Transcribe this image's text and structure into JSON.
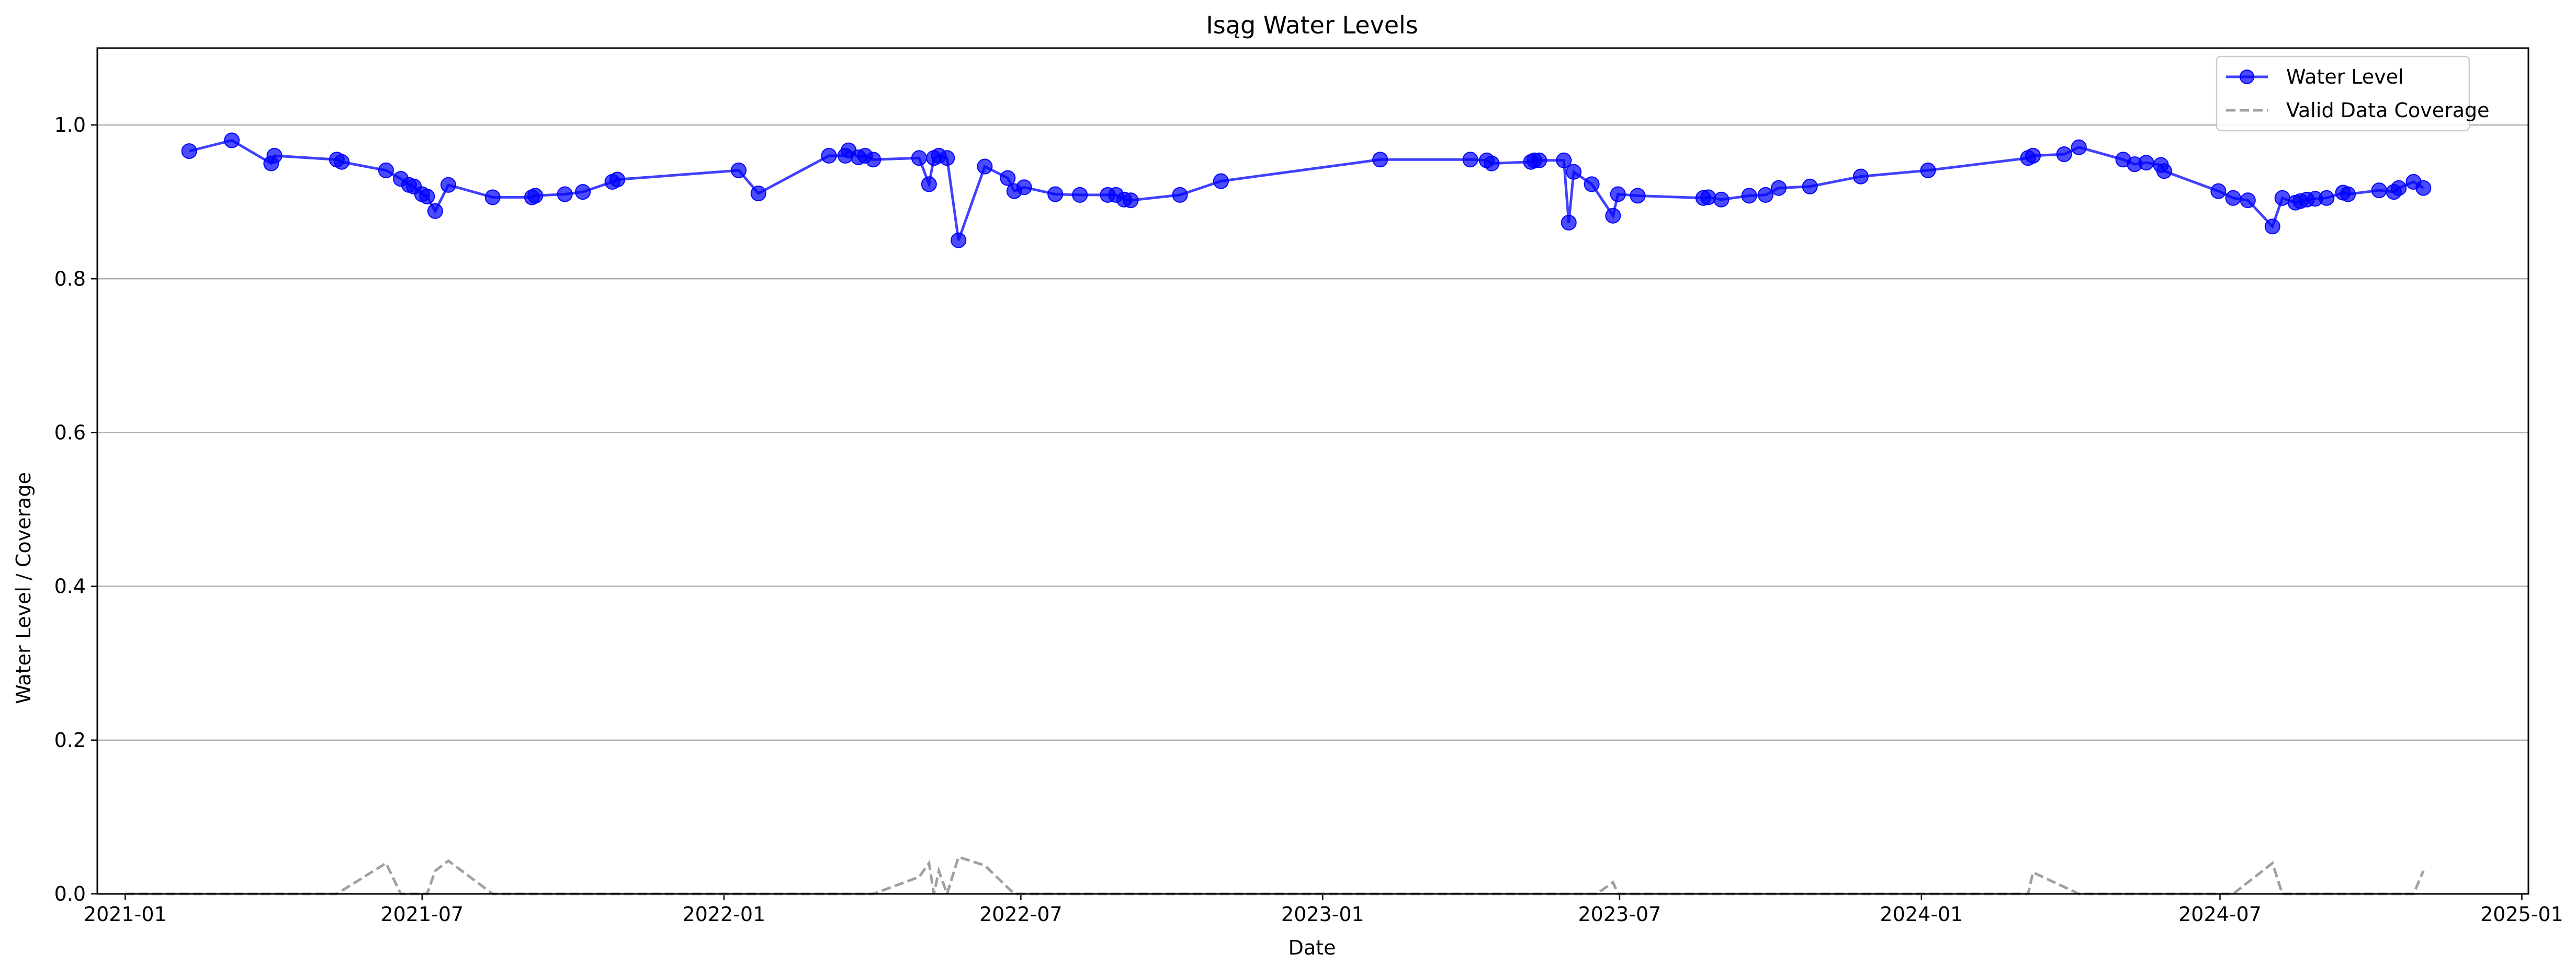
{
  "chart_data": {
    "type": "line",
    "title": "Isąg Water Levels",
    "xlabel": "Date",
    "ylabel": "Water Level / Coverage",
    "xlim": [
      "2020-12-15",
      "2025-01-05"
    ],
    "ylim": [
      0,
      1.1
    ],
    "x_ticks": [
      "2021-01-01",
      "2021-07-01",
      "2022-01-01",
      "2022-07-01",
      "2023-01-01",
      "2023-07-01",
      "2024-01-01",
      "2024-07-01",
      "2025-01-01"
    ],
    "x_tick_labels": [
      "2021-01",
      "2021-07",
      "2022-01",
      "2022-07",
      "2023-01",
      "2023-07",
      "2024-01",
      "2024-07",
      "2025-01"
    ],
    "y_ticks": [
      0.0,
      0.2,
      0.4,
      0.6,
      0.8,
      1.0
    ],
    "y_tick_labels": [
      "0.0",
      "0.2",
      "0.4",
      "0.6",
      "0.8",
      "1.0"
    ],
    "grid": "horizontal",
    "legend_position": "top-right",
    "series": [
      {
        "name": "Water Level",
        "style": "solid line with circle markers",
        "color": "#0000ff",
        "points": [
          [
            "2021-02-09",
            0.966
          ],
          [
            "2021-03-07",
            0.98
          ],
          [
            "2021-03-31",
            0.95
          ],
          [
            "2021-04-02",
            0.96
          ],
          [
            "2021-05-10",
            0.955
          ],
          [
            "2021-05-13",
            0.952
          ],
          [
            "2021-06-09",
            0.941
          ],
          [
            "2021-06-18",
            0.93
          ],
          [
            "2021-06-23",
            0.922
          ],
          [
            "2021-06-26",
            0.92
          ],
          [
            "2021-07-01",
            0.91
          ],
          [
            "2021-07-04",
            0.907
          ],
          [
            "2021-07-09",
            0.888
          ],
          [
            "2021-07-17",
            0.922
          ],
          [
            "2021-08-13",
            0.906
          ],
          [
            "2021-09-06",
            0.906
          ],
          [
            "2021-09-08",
            0.908
          ],
          [
            "2021-09-26",
            0.91
          ],
          [
            "2021-10-07",
            0.913
          ],
          [
            "2021-10-25",
            0.926
          ],
          [
            "2021-10-28",
            0.929
          ],
          [
            "2022-01-10",
            0.941
          ],
          [
            "2022-01-22",
            0.911
          ],
          [
            "2022-03-06",
            0.96
          ],
          [
            "2022-03-16",
            0.96
          ],
          [
            "2022-03-18",
            0.967
          ],
          [
            "2022-03-24",
            0.958
          ],
          [
            "2022-03-28",
            0.96
          ],
          [
            "2022-04-02",
            0.955
          ],
          [
            "2022-04-30",
            0.957
          ],
          [
            "2022-05-06",
            0.923
          ],
          [
            "2022-05-09",
            0.957
          ],
          [
            "2022-05-12",
            0.96
          ],
          [
            "2022-05-17",
            0.957
          ],
          [
            "2022-05-24",
            0.85
          ],
          [
            "2022-06-09",
            0.946
          ],
          [
            "2022-06-23",
            0.931
          ],
          [
            "2022-06-27",
            0.914
          ],
          [
            "2022-07-03",
            0.919
          ],
          [
            "2022-07-22",
            0.91
          ],
          [
            "2022-08-06",
            0.909
          ],
          [
            "2022-08-23",
            0.909
          ],
          [
            "2022-08-28",
            0.909
          ],
          [
            "2022-09-02",
            0.903
          ],
          [
            "2022-09-06",
            0.902
          ],
          [
            "2022-10-06",
            0.909
          ],
          [
            "2022-10-31",
            0.927
          ],
          [
            "2023-02-05",
            0.955
          ],
          [
            "2023-04-01",
            0.955
          ],
          [
            "2023-04-11",
            0.954
          ],
          [
            "2023-04-14",
            0.95
          ],
          [
            "2023-05-08",
            0.952
          ],
          [
            "2023-05-10",
            0.954
          ],
          [
            "2023-05-13",
            0.954
          ],
          [
            "2023-05-28",
            0.954
          ],
          [
            "2023-05-31",
            0.873
          ],
          [
            "2023-06-03",
            0.939
          ],
          [
            "2023-06-14",
            0.923
          ],
          [
            "2023-06-27",
            0.882
          ],
          [
            "2023-06-30",
            0.91
          ],
          [
            "2023-07-12",
            0.908
          ],
          [
            "2023-08-21",
            0.905
          ],
          [
            "2023-08-24",
            0.906
          ],
          [
            "2023-09-01",
            0.903
          ],
          [
            "2023-09-18",
            0.908
          ],
          [
            "2023-09-28",
            0.909
          ],
          [
            "2023-10-06",
            0.918
          ],
          [
            "2023-10-25",
            0.92
          ],
          [
            "2023-11-25",
            0.933
          ],
          [
            "2024-01-05",
            0.941
          ],
          [
            "2024-03-06",
            0.957
          ],
          [
            "2024-03-09",
            0.96
          ],
          [
            "2024-03-28",
            0.962
          ],
          [
            "2024-04-06",
            0.971
          ],
          [
            "2024-05-03",
            0.955
          ],
          [
            "2024-05-10",
            0.949
          ],
          [
            "2024-05-17",
            0.951
          ],
          [
            "2024-05-26",
            0.948
          ],
          [
            "2024-05-28",
            0.94
          ],
          [
            "2024-06-30",
            0.914
          ],
          [
            "2024-07-09",
            0.905
          ],
          [
            "2024-07-18",
            0.902
          ],
          [
            "2024-08-02",
            0.868
          ],
          [
            "2024-08-08",
            0.905
          ],
          [
            "2024-08-16",
            0.899
          ],
          [
            "2024-08-19",
            0.901
          ],
          [
            "2024-08-23",
            0.903
          ],
          [
            "2024-08-28",
            0.904
          ],
          [
            "2024-09-04",
            0.905
          ],
          [
            "2024-09-14",
            0.912
          ],
          [
            "2024-09-17",
            0.91
          ],
          [
            "2024-10-06",
            0.915
          ],
          [
            "2024-10-15",
            0.913
          ],
          [
            "2024-10-18",
            0.918
          ],
          [
            "2024-10-27",
            0.926
          ],
          [
            "2024-11-02",
            0.918
          ]
        ]
      },
      {
        "name": "Valid Data Coverage",
        "style": "dashed line",
        "color": "#a0a0a0",
        "points": [
          [
            "2021-01-01",
            0.0
          ],
          [
            "2021-05-10",
            0.0
          ],
          [
            "2021-06-09",
            0.04
          ],
          [
            "2021-06-18",
            0.0
          ],
          [
            "2021-07-04",
            0.0
          ],
          [
            "2021-07-09",
            0.03
          ],
          [
            "2021-07-17",
            0.043
          ],
          [
            "2021-08-13",
            0.0
          ],
          [
            "2022-04-02",
            0.0
          ],
          [
            "2022-04-30",
            0.022
          ],
          [
            "2022-05-06",
            0.04
          ],
          [
            "2022-05-09",
            0.0
          ],
          [
            "2022-05-12",
            0.03
          ],
          [
            "2022-05-17",
            0.0
          ],
          [
            "2022-05-24",
            0.048
          ],
          [
            "2022-06-09",
            0.037
          ],
          [
            "2022-06-27",
            0.0
          ],
          [
            "2023-06-17",
            0.0
          ],
          [
            "2023-06-27",
            0.015
          ],
          [
            "2023-06-30",
            0.0
          ],
          [
            "2024-03-06",
            0.0
          ],
          [
            "2024-03-09",
            0.028
          ],
          [
            "2024-04-06",
            0.0
          ],
          [
            "2024-07-09",
            0.0
          ],
          [
            "2024-08-02",
            0.04
          ],
          [
            "2024-08-08",
            0.0
          ],
          [
            "2024-10-27",
            0.0
          ],
          [
            "2024-11-02",
            0.03
          ]
        ]
      }
    ]
  }
}
